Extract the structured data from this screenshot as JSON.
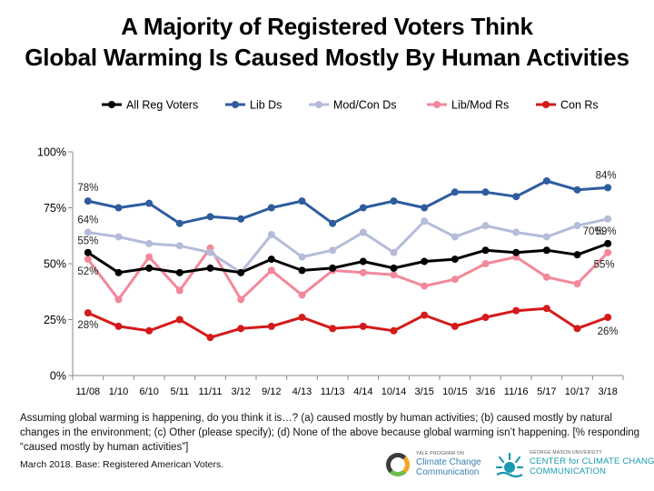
{
  "title_lines": [
    "A Majority of Registered Voters Think",
    "Global Warming Is Caused Mostly By Human Activities"
  ],
  "note": "Assuming global warming is happening, do you think it is…? (a) caused mostly by human activities; (b) caused mostly by natural changes in the environment; (c) Other (please specify); (d) None of the above because global warming isn’t happening. [% responding “caused mostly by human activities”]",
  "source": "March 2018. Base: Registered American Voters.",
  "logos": {
    "yale_small": "YALE PROGRAM ON",
    "yale_line1": "Climate Change",
    "yale_line2": "Communication",
    "gmu_small": "GEORGE MASON UNIVERSITY",
    "gmu_line1": "CENTER for CLIMATE CHANGE",
    "gmu_line2": "COMMUNICATION"
  },
  "chart_data": {
    "type": "line",
    "title": "A Majority of Registered Voters Think Global Warming Is Caused Mostly By Human Activities",
    "xlabel": "",
    "ylabel": "",
    "ylim": [
      0,
      100
    ],
    "y_ticks": [
      "0%",
      "25%",
      "50%",
      "75%",
      "100%"
    ],
    "grid": false,
    "legend_position": "top",
    "categories": [
      "11/08",
      "1/10",
      "6/10",
      "5/11",
      "11/11",
      "3/12",
      "9/12",
      "4/13",
      "11/13",
      "4/14",
      "10/14",
      "3/15",
      "10/15",
      "3/16",
      "11/16",
      "5/17",
      "10/17",
      "3/18"
    ],
    "series": [
      {
        "name": "All Reg Voters",
        "color": "#000000",
        "values": [
          55,
          46,
          48,
          46,
          48,
          46,
          52,
          47,
          48,
          51,
          48,
          51,
          52,
          56,
          55,
          56,
          54,
          59
        ]
      },
      {
        "name": "Lib Ds",
        "color": "#2e5c9e",
        "values": [
          78,
          75,
          77,
          68,
          71,
          70,
          75,
          78,
          68,
          75,
          78,
          75,
          82,
          82,
          80,
          87,
          83,
          84
        ]
      },
      {
        "name": "Mod/Con Ds",
        "color": "#b4bcd9",
        "values": [
          64,
          62,
          59,
          58,
          55,
          46,
          63,
          53,
          56,
          64,
          55,
          69,
          62,
          67,
          64,
          62,
          67,
          70
        ]
      },
      {
        "name": "Lib/Mod Rs",
        "color": "#f2889a",
        "values": [
          52,
          34,
          53,
          38,
          57,
          34,
          47,
          36,
          47,
          46,
          45,
          40,
          43,
          50,
          53,
          44,
          41,
          55
        ]
      },
      {
        "name": "Con Rs",
        "color": "#d41a1a",
        "values": [
          28,
          22,
          20,
          25,
          17,
          21,
          22,
          26,
          21,
          22,
          20,
          27,
          22,
          26,
          29,
          30,
          21,
          26
        ]
      }
    ],
    "data_labels": [
      {
        "series": 0,
        "index": 0,
        "text": "55%"
      },
      {
        "series": 1,
        "index": 0,
        "text": "78%"
      },
      {
        "series": 2,
        "index": 0,
        "text": "64%"
      },
      {
        "series": 3,
        "index": 0,
        "text": "52%"
      },
      {
        "series": 4,
        "index": 0,
        "text": "28%"
      },
      {
        "series": 1,
        "index": 17,
        "text": "84%"
      },
      {
        "series": 2,
        "index": 17,
        "text": "70%"
      },
      {
        "series": 0,
        "index": 17,
        "text": "59%"
      },
      {
        "series": 3,
        "index": 17,
        "text": "55%"
      },
      {
        "series": 4,
        "index": 17,
        "text": "26%"
      }
    ]
  }
}
